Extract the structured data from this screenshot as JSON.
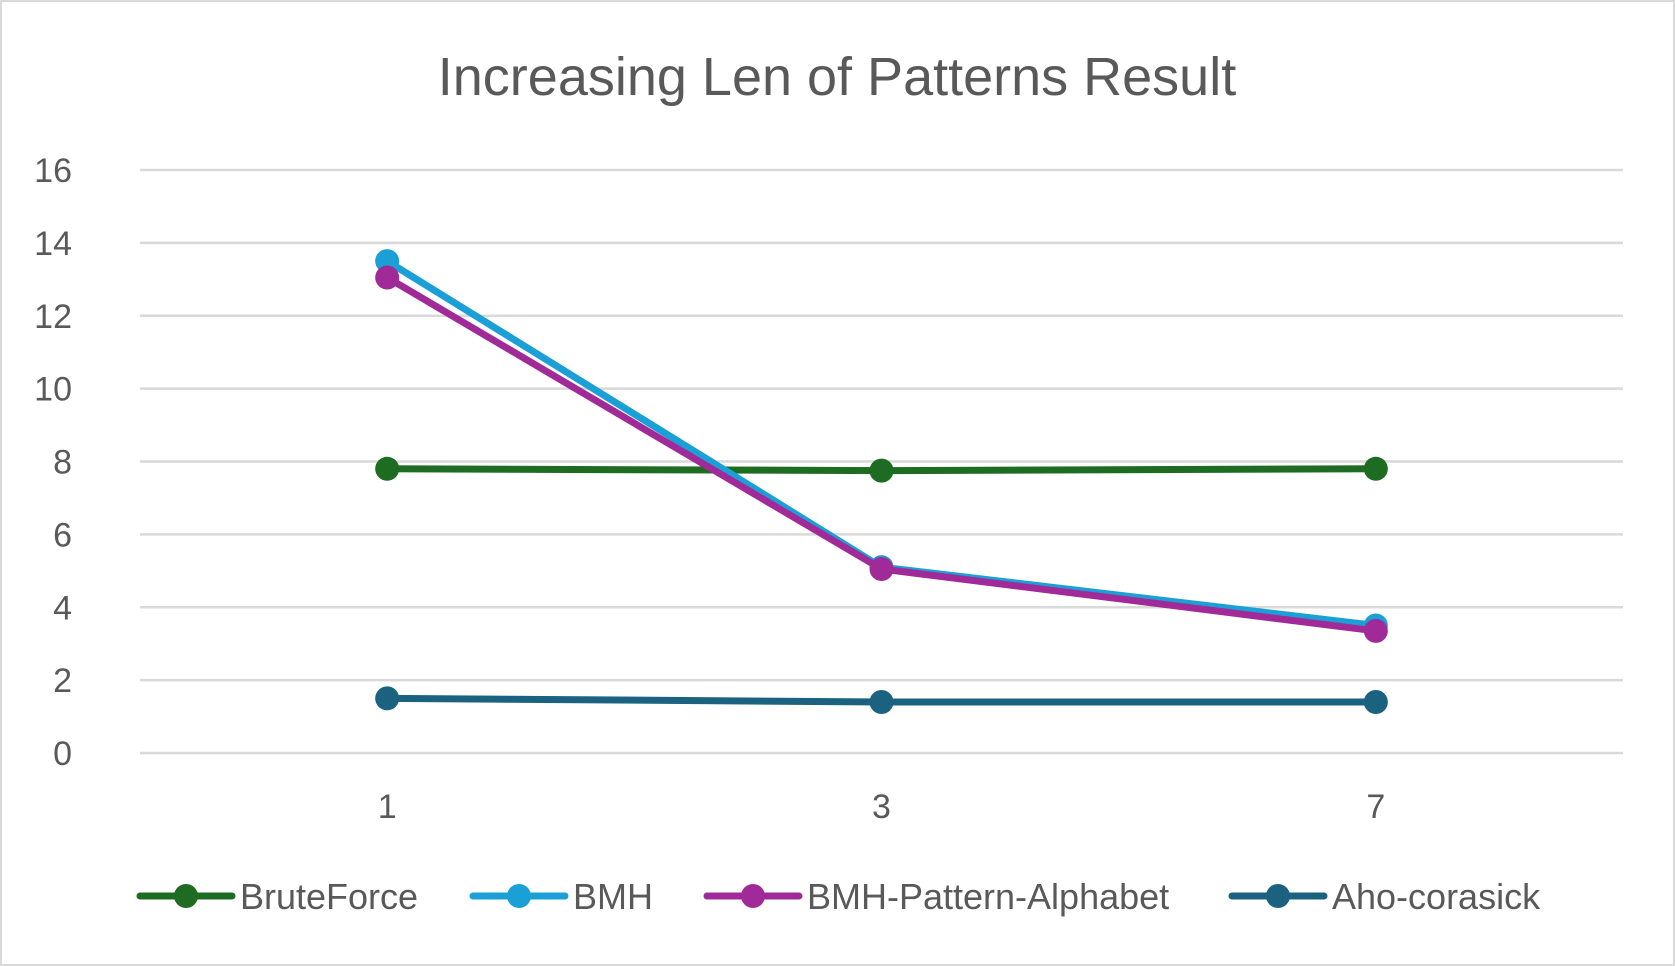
{
  "chart_data": {
    "type": "line",
    "title": "Increasing Len of Patterns Result",
    "xlabel": "",
    "ylabel": "",
    "categories": [
      "1",
      "3",
      "7"
    ],
    "ylim": [
      0,
      16
    ],
    "yticks": [
      "0",
      "2",
      "4",
      "6",
      "8",
      "10",
      "12",
      "14",
      "16"
    ],
    "grid": true,
    "legend_position": "bottom",
    "series": [
      {
        "name": "BruteForce",
        "color": "#1e6b22",
        "values": [
          7.8,
          7.75,
          7.8
        ]
      },
      {
        "name": "BMH",
        "color": "#1aa0d6",
        "values": [
          13.5,
          5.1,
          3.5
        ]
      },
      {
        "name": "BMH-Pattern-Alphabet",
        "color": "#a02b98",
        "values": [
          13.05,
          5.05,
          3.35
        ]
      },
      {
        "name": "Aho-corasick",
        "color": "#1b6280",
        "values": [
          1.5,
          1.4,
          1.4
        ]
      }
    ]
  }
}
